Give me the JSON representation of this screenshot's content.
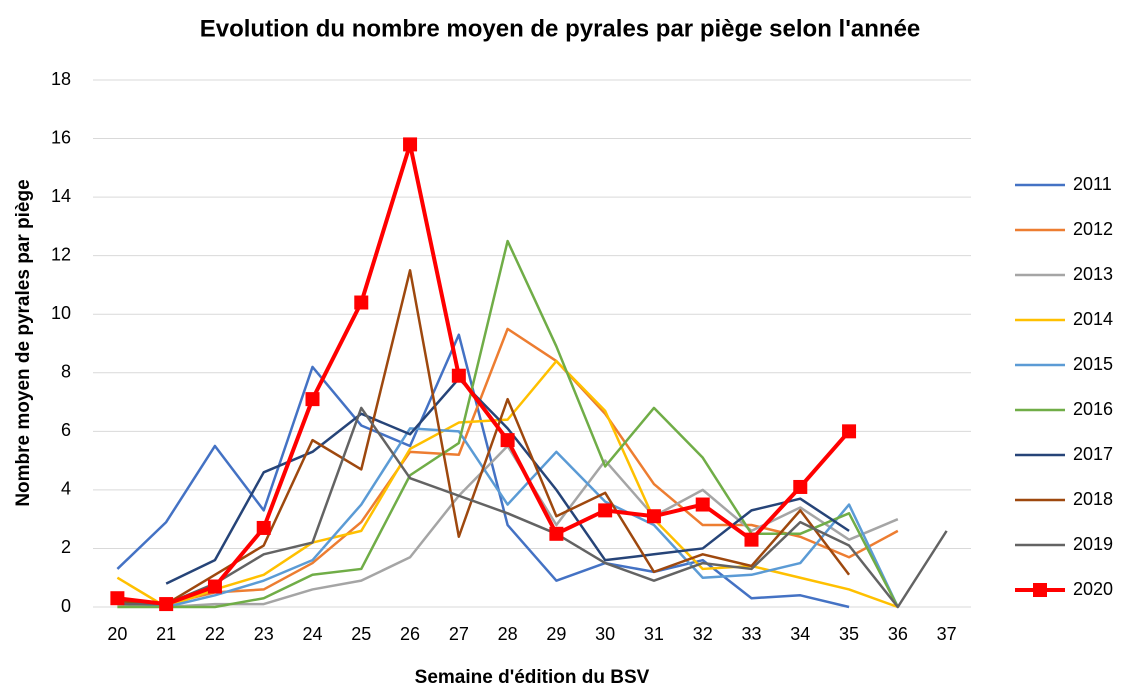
{
  "chart_data": {
    "type": "line",
    "title": "Evolution du nombre moyen de pyrales par piège selon l'année",
    "x_label": "Semaine d'édition du BSV",
    "y_label": "Nombre moyen de pyrales par piège",
    "categories": [
      "20",
      "21",
      "22",
      "23",
      "24",
      "25",
      "26",
      "27",
      "28",
      "29",
      "30",
      "31",
      "32",
      "33",
      "34",
      "35",
      "36",
      "37"
    ],
    "ylim": [
      0,
      18
    ],
    "yticks": [
      0,
      2,
      4,
      6,
      8,
      10,
      12,
      14,
      16,
      18
    ],
    "grid": true,
    "legend": "right",
    "series": [
      {
        "name": "2011",
        "color": "#4472c4",
        "values": [
          1.3,
          2.9,
          5.5,
          3.3,
          8.2,
          6.2,
          5.5,
          9.3,
          2.8,
          0.9,
          1.5,
          1.2,
          1.6,
          0.3,
          0.4,
          0,
          null,
          null
        ]
      },
      {
        "name": "2012",
        "color": "#ed7d31",
        "values": [
          0.2,
          0.1,
          0.5,
          0.6,
          1.5,
          2.9,
          5.3,
          5.2,
          9.5,
          8.4,
          6.6,
          4.2,
          2.8,
          2.8,
          2.4,
          1.7,
          2.6,
          null
        ]
      },
      {
        "name": "2013",
        "color": "#a5a5a5",
        "values": [
          0.1,
          0,
          0.1,
          0.1,
          0.6,
          0.9,
          1.7,
          3.8,
          5.5,
          2.8,
          5.0,
          3.1,
          4.0,
          2.6,
          3.4,
          2.3,
          3.0,
          null
        ]
      },
      {
        "name": "2014",
        "color": "#ffc000",
        "values": [
          1.0,
          0,
          0.6,
          1.1,
          2.2,
          2.6,
          5.4,
          6.3,
          6.4,
          8.4,
          6.7,
          3.0,
          1.3,
          1.4,
          1.0,
          0.6,
          0,
          null
        ]
      },
      {
        "name": "2015",
        "color": "#5b9bd5",
        "values": [
          0.2,
          0,
          0.4,
          0.9,
          1.6,
          3.5,
          6.1,
          6.0,
          3.5,
          5.3,
          3.6,
          2.8,
          1.0,
          1.1,
          1.5,
          3.5,
          0,
          null
        ]
      },
      {
        "name": "2016",
        "color": "#70ad47",
        "values": [
          0,
          0,
          0,
          0.3,
          1.1,
          1.3,
          4.5,
          5.6,
          12.5,
          8.9,
          4.8,
          6.8,
          5.1,
          2.5,
          2.5,
          3.2,
          0,
          null
        ]
      },
      {
        "name": "2017",
        "color": "#264478",
        "values": [
          null,
          0.8,
          1.6,
          4.6,
          5.3,
          6.6,
          5.9,
          7.8,
          6.1,
          4.0,
          1.6,
          1.8,
          2.0,
          3.3,
          3.7,
          2.6,
          null,
          null
        ]
      },
      {
        "name": "2018",
        "color": "#9e480e",
        "values": [
          0.2,
          0.1,
          1.1,
          2.1,
          5.7,
          4.7,
          11.5,
          2.4,
          7.1,
          3.1,
          3.9,
          1.2,
          1.8,
          1.4,
          3.3,
          1.1,
          null,
          null
        ]
      },
      {
        "name": "2019",
        "color": "#636363",
        "values": [
          0.1,
          0.1,
          0.8,
          1.8,
          2.2,
          6.8,
          4.4,
          3.8,
          3.2,
          2.5,
          1.5,
          0.9,
          1.5,
          1.3,
          2.9,
          2.1,
          0,
          2.6
        ]
      },
      {
        "name": "2020",
        "color": "#ff0000",
        "marker": "square",
        "values": [
          0.3,
          0.1,
          0.7,
          2.7,
          7.1,
          10.4,
          15.8,
          7.9,
          5.7,
          2.5,
          3.3,
          3.1,
          3.5,
          2.3,
          4.1,
          6.0,
          null,
          null
        ]
      }
    ]
  }
}
